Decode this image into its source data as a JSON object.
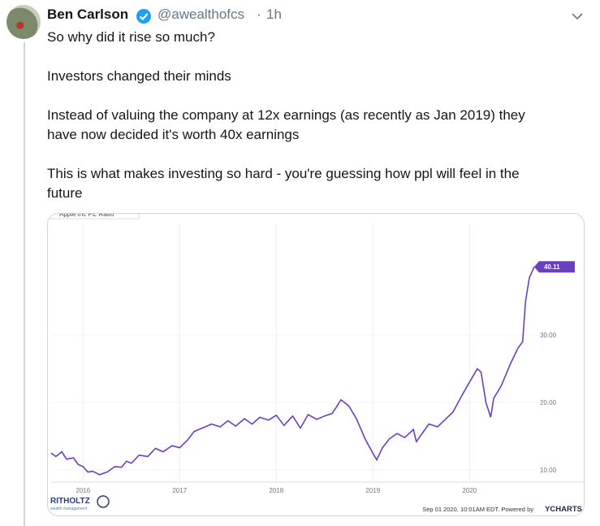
{
  "tweet": {
    "name": "Ben Carlson",
    "handle": "@awealthofcs",
    "separator": "·",
    "time": "1h",
    "paragraphs": [
      [
        "So why did it rise so much?"
      ],
      [
        "Investors changed their minds"
      ],
      [
        "Instead of valuing the company at 12x earnings (as recently as Jan 2019) they",
        "have now decided it's worth 40x earnings"
      ],
      [
        "This is what makes investing so hard - you're guessing how ppl will feel in the",
        "future"
      ]
    ]
  },
  "chart": {
    "type": "line",
    "title": "Apple Inc PE Ratio",
    "color": "#6a3fc1",
    "x": [
      2015.67,
      2015.72,
      2015.78,
      2015.83,
      2015.9,
      2015.95,
      2016.0,
      2016.05,
      2016.1,
      2016.17,
      2016.25,
      2016.33,
      2016.4,
      2016.45,
      2016.5,
      2016.58,
      2016.67,
      2016.75,
      2016.83,
      2016.92,
      2017.0,
      2017.08,
      2017.15,
      2017.25,
      2017.33,
      2017.42,
      2017.5,
      2017.58,
      2017.67,
      2017.75,
      2017.83,
      2017.92,
      2018.0,
      2018.08,
      2018.17,
      2018.25,
      2018.33,
      2018.42,
      2018.5,
      2018.58,
      2018.67,
      2018.75,
      2018.83,
      2018.92,
      2019.0,
      2019.04,
      2019.1,
      2019.17,
      2019.25,
      2019.33,
      2019.42,
      2019.45,
      2019.5,
      2019.58,
      2019.67,
      2019.75,
      2019.83,
      2019.92,
      2020.0,
      2020.08,
      2020.12,
      2020.17,
      2020.22,
      2020.25,
      2020.33,
      2020.42,
      2020.5,
      2020.55,
      2020.58,
      2020.62,
      2020.67
    ],
    "y": [
      12.5,
      12.0,
      12.7,
      11.6,
      11.8,
      10.8,
      10.5,
      9.7,
      9.8,
      9.3,
      9.7,
      10.5,
      10.4,
      11.3,
      11.0,
      12.2,
      12.0,
      13.2,
      12.7,
      13.6,
      13.3,
      14.4,
      15.7,
      16.3,
      16.8,
      16.4,
      17.3,
      16.5,
      17.6,
      16.8,
      17.8,
      17.4,
      18.1,
      16.6,
      18.0,
      16.2,
      18.2,
      17.5,
      18.0,
      18.4,
      20.4,
      19.5,
      17.6,
      14.6,
      12.5,
      11.5,
      13.3,
      14.6,
      15.4,
      14.8,
      16.0,
      14.2,
      15.2,
      16.8,
      16.4,
      17.5,
      18.6,
      21.0,
      23.0,
      25.0,
      24.5,
      20.0,
      17.8,
      20.6,
      22.5,
      25.6,
      28.0,
      29.0,
      35.0,
      38.5,
      40.11
    ],
    "xlim": [
      2015.67,
      2020.83
    ],
    "ylim": [
      8.2,
      46.4
    ],
    "xticks": [
      2016,
      2017,
      2018,
      2019,
      2020
    ],
    "yticks": [
      {
        "value": 10,
        "label": "10.00"
      },
      {
        "value": 20,
        "label": "20.00"
      },
      {
        "value": 30,
        "label": "30.00"
      }
    ],
    "grid": true,
    "footer": "Sep 01 2020, 10:01AM EDT. Powered by",
    "brand": "YCHARTS",
    "logo": "RITHOLTZ",
    "logo_sub": "wealth management"
  }
}
